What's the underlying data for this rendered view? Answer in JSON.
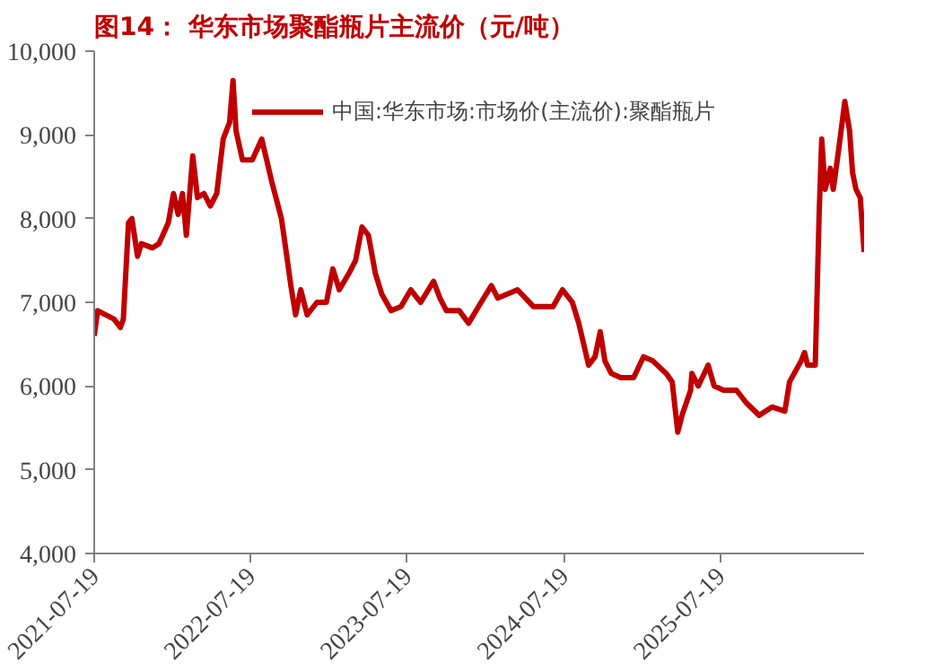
{
  "chart_data": {
    "type": "line",
    "title": "图14：  华东市场聚酯瓶片主流价（元/吨）",
    "x": [
      "2021-07-19",
      "2021-07-27",
      "2021-09-03",
      "2021-09-18",
      "2021-09-25",
      "2021-10-07",
      "2021-10-15",
      "2021-10-28",
      "2021-11-06",
      "2021-12-02",
      "2021-12-17",
      "2022-01-08",
      "2022-01-20",
      "2022-01-31",
      "2022-02-10",
      "2022-02-19",
      "2022-03-06",
      "2022-03-17",
      "2022-04-01",
      "2022-04-16",
      "2022-05-01",
      "2022-05-16",
      "2022-05-31",
      "2022-06-08",
      "2022-06-15",
      "2022-06-30",
      "2022-07-23",
      "2022-08-14",
      "2022-09-06",
      "2022-09-29",
      "2022-10-06",
      "2022-10-21",
      "2022-11-01",
      "2022-11-13",
      "2022-11-28",
      "2022-12-21",
      "2023-01-12",
      "2023-01-27",
      "2023-02-11",
      "2023-03-06",
      "2023-03-21",
      "2023-04-05",
      "2023-04-20",
      "2023-05-06",
      "2023-05-21",
      "2023-06-12",
      "2023-07-05",
      "2023-07-28",
      "2023-08-12",
      "2023-08-20",
      "2023-09-19",
      "2023-10-04",
      "2023-10-19",
      "2023-11-18",
      "2023-12-10",
      "2024-01-02",
      "2024-02-01",
      "2024-02-16",
      "2024-04-02",
      "2024-05-09",
      "2024-06-24",
      "2024-07-16",
      "2024-08-08",
      "2024-08-23",
      "2024-09-15",
      "2024-09-30",
      "2024-10-12",
      "2024-10-23",
      "2024-11-07",
      "2024-11-29",
      "2024-12-29",
      "2025-01-21",
      "2025-02-12",
      "2025-03-15",
      "2025-03-29",
      "2025-04-11",
      "2025-04-21",
      "2025-05-11",
      "2025-05-14",
      "2025-05-29",
      "2025-06-21",
      "2025-07-05",
      "2025-07-27",
      "2025-08-26",
      "2025-09-18",
      "2025-10-18",
      "2025-11-17",
      "2025-12-17",
      "2025-12-28",
      "2026-01-24",
      "2026-02-01",
      "2026-02-08",
      "2026-02-26",
      "2026-03-07",
      "2026-03-13",
      "2026-03-21",
      "2026-04-02",
      "2026-04-09",
      "2026-04-21",
      "2026-05-06",
      "2026-05-17",
      "2026-05-24",
      "2026-06-01",
      "2026-06-11",
      "2026-06-20"
    ],
    "series": [
      {
        "name": "中国:华东市场:市场价(主流价):聚酯瓶片",
        "color": "#c00000",
        "values": [
          6600,
          6900,
          6800,
          6700,
          6800,
          7950,
          8000,
          7550,
          7700,
          7650,
          7700,
          7950,
          8300,
          8050,
          8300,
          7800,
          8750,
          8250,
          8300,
          8150,
          8300,
          8950,
          9150,
          9650,
          9050,
          8700,
          8700,
          8950,
          8450,
          8000,
          7750,
          7200,
          6850,
          7150,
          6850,
          7000,
          7000,
          7400,
          7150,
          7350,
          7500,
          7900,
          7800,
          7350,
          7100,
          6900,
          6950,
          7150,
          7050,
          7000,
          7250,
          7050,
          6900,
          6900,
          6750,
          6950,
          7200,
          7050,
          7150,
          6950,
          6950,
          7150,
          7000,
          6750,
          6250,
          6350,
          6650,
          6300,
          6150,
          6100,
          6100,
          6350,
          6300,
          6150,
          6050,
          5450,
          5650,
          5950,
          6150,
          6000,
          6250,
          6000,
          5950,
          5950,
          5800,
          5650,
          5750,
          5700,
          6050,
          6300,
          6400,
          6250,
          6250,
          8050,
          8950,
          8350,
          8600,
          8350,
          8800,
          9400,
          9050,
          8550,
          8350,
          8250,
          7600
        ]
      }
    ],
    "ylim": [
      4000,
      10000
    ],
    "yticks": [
      {
        "value": 4000,
        "label": "4,000"
      },
      {
        "value": 5000,
        "label": "5,000"
      },
      {
        "value": 6000,
        "label": "6,000"
      },
      {
        "value": 7000,
        "label": "7,000"
      },
      {
        "value": 8000,
        "label": "8,000"
      },
      {
        "value": 9000,
        "label": "9,000"
      },
      {
        "value": 10000,
        "label": "10,000"
      }
    ],
    "xlim": [
      "2021-07-19",
      "2026-06-20"
    ],
    "xticks": [
      "2021-07-19",
      "2022-07-19",
      "2023-07-19",
      "2024-07-19",
      "2025-07-19"
    ],
    "grid": false,
    "legend": "top left",
    "line_style": "solid",
    "marker": "none"
  }
}
